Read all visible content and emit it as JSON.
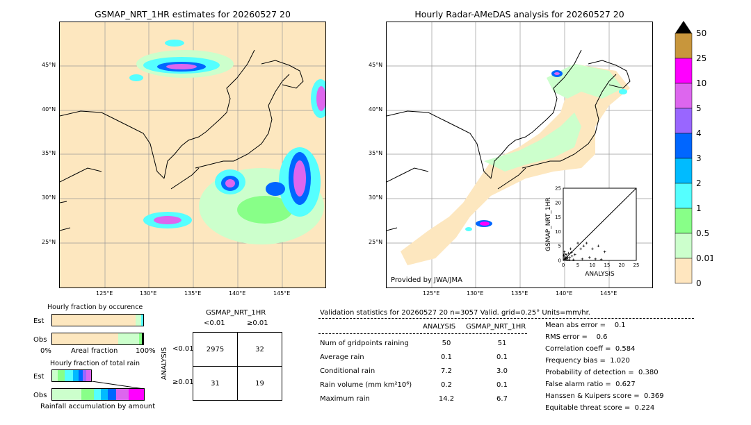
{
  "left_map": {
    "title": "GSMAP_NRT_1HR estimates for 20260527 20",
    "lat_labels": [
      "45°N",
      "40°N",
      "35°N",
      "30°N",
      "25°N"
    ],
    "lon_labels": [
      "125°E",
      "130°E",
      "135°E",
      "140°E",
      "145°E"
    ]
  },
  "right_map": {
    "title": "Hourly Radar-AMeDAS analysis for 20260527 20",
    "lat_labels": [
      "45°N",
      "40°N",
      "35°N",
      "30°N",
      "25°N"
    ],
    "lon_labels": [
      "125°E",
      "130°E",
      "135°E",
      "140°E",
      "145°E"
    ],
    "credit": "Provided by JWA/JMA"
  },
  "scatter_inset": {
    "xlabel": "ANALYSIS",
    "ylabel": "GSMAP_NRT_1HR",
    "ticks": [
      "0",
      "5",
      "10",
      "15",
      "20",
      "25"
    ]
  },
  "colorbar": {
    "labels": [
      "50",
      "25",
      "10",
      "5",
      "4",
      "3",
      "2",
      "1",
      "0.5",
      "0.01",
      "0"
    ],
    "colors": [
      "#c8963c",
      "#ff00ff",
      "#dd66ee",
      "#9966ff",
      "#0066ff",
      "#00bbff",
      "#55ffff",
      "#88ff88",
      "#ccffcc",
      "#ffe6bf"
    ]
  },
  "fraction_occurrence": {
    "title": "Hourly fraction by occurence",
    "row_est": "Est",
    "row_obs": "Obs",
    "axis_left": "0%",
    "axis_mid": "Areal fraction",
    "axis_right": "100%"
  },
  "fraction_total": {
    "title": "Hourly fraction of total rain",
    "row_est": "Est",
    "row_obs": "Obs",
    "footer": "Rainfall accumulation by amount"
  },
  "contingency": {
    "title": "GSMAP_NRT_1HR",
    "col_lt": "<0.01",
    "col_ge": "≥0.01",
    "side_label": "ANALYSIS",
    "row_lt": "<0.01",
    "row_ge": "≥0.01",
    "cells": [
      [
        "2975",
        "32"
      ],
      [
        "31",
        "19"
      ]
    ]
  },
  "validation": {
    "header": "Validation statistics for 20260527 20  n=3057 Valid. grid=0.25° Units=mm/hr.",
    "col_analysis": "ANALYSIS",
    "col_gsmap": "GSMAP_NRT_1HR",
    "rows": [
      {
        "label": "Num of gridpoints raining",
        "a": "50",
        "g": "51"
      },
      {
        "label": "Average rain",
        "a": "0.1",
        "g": "0.1"
      },
      {
        "label": "Conditional rain",
        "a": "7.2",
        "g": "3.0"
      },
      {
        "label": "Rain volume (mm km²10⁶)",
        "a": "0.2",
        "g": "0.1"
      },
      {
        "label": "Maximum rain",
        "a": "14.2",
        "g": "6.7"
      }
    ],
    "scores": [
      "Mean abs error =    0.1",
      "RMS error =    0.6",
      "Correlation coeff =  0.584",
      "Frequency bias =  1.020",
      "Probability of detection =  0.380",
      "False alarm ratio =  0.627",
      "Hanssen & Kuipers score =  0.369",
      "Equitable threat score =  0.224"
    ]
  },
  "chart_data": {
    "type": "scatter",
    "xlabel": "ANALYSIS",
    "ylabel": "GSMAP_NRT_1HR",
    "xlim": [
      0,
      25
    ],
    "ylim": [
      0,
      25
    ],
    "points": [
      [
        0.3,
        0.5
      ],
      [
        0.5,
        1.2
      ],
      [
        0.8,
        0.3
      ],
      [
        1.0,
        2.0
      ],
      [
        1.2,
        0.6
      ],
      [
        0.4,
        3.0
      ],
      [
        1.5,
        1.0
      ],
      [
        2.0,
        0.2
      ],
      [
        2.5,
        4.0
      ],
      [
        3.0,
        1.5
      ],
      [
        1.8,
        2.5
      ],
      [
        0.2,
        1.8
      ],
      [
        4.0,
        2.0
      ],
      [
        5.0,
        6.0
      ],
      [
        6.0,
        4.0
      ],
      [
        6.5,
        0.5
      ],
      [
        7.0,
        5.0
      ],
      [
        8.0,
        6.0
      ],
      [
        9.0,
        1.0
      ],
      [
        10.0,
        4.0
      ],
      [
        11.0,
        0.5
      ],
      [
        12.0,
        5.0
      ],
      [
        13.0,
        0.3
      ],
      [
        14.2,
        3.0
      ],
      [
        3.5,
        0.2
      ],
      [
        2.2,
        1.0
      ],
      [
        0.9,
        0.9
      ],
      [
        1.3,
        0.2
      ],
      [
        0.6,
        2.2
      ],
      [
        2.8,
        2.8
      ]
    ]
  }
}
